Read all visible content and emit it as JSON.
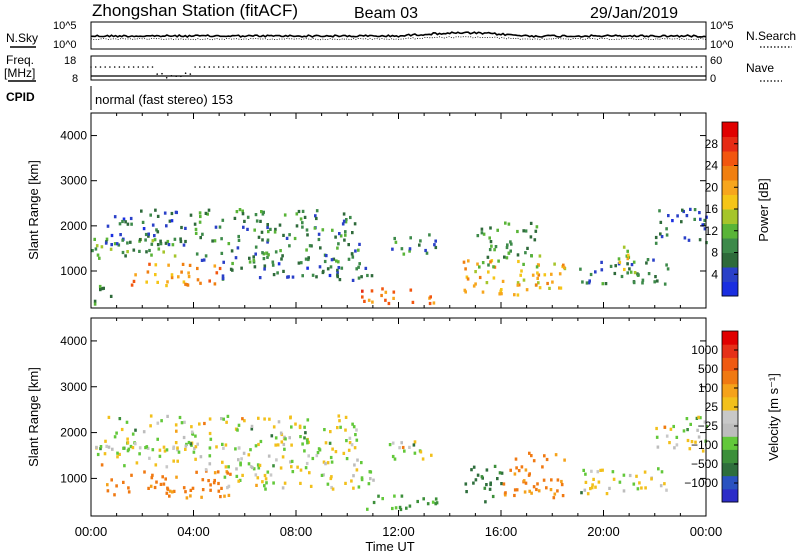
{
  "header": {
    "station": "Zhongshan Station (fitACF)",
    "beam": "Beam 03",
    "date": "29/Jan/2019"
  },
  "labels": {
    "nsky": "N.Sky",
    "nsearch": "N.Search",
    "freq": "Freq.",
    "freq_unit": "[MHz]",
    "nave": "Nave",
    "cpid": "CPID",
    "cpid_text": "normal (fast stereo) 153",
    "x_axis": "Time UT"
  },
  "noise_panel": {
    "left_ticks": [
      "10^5",
      "10^0"
    ],
    "right_ticks": [
      "10^5",
      "10^0"
    ]
  },
  "freq_panel": {
    "left_ticks": [
      "18",
      "8"
    ],
    "right_ticks": [
      "60",
      "0"
    ]
  },
  "colors": {
    "power": [
      "#1a2ee0",
      "#2a40c8",
      "#2e6a3a",
      "#3d8a4a",
      "#59b437",
      "#a5c52b",
      "#f5c517",
      "#f7a61d",
      "#f07f10",
      "#f2560f",
      "#e62b14",
      "#e00000"
    ],
    "velocity": [
      "#2c2cc8",
      "#2a52c0",
      "#2e6e3c",
      "#3c8f3a",
      "#62c83a",
      "#bdbdbd",
      "#c8c8c8",
      "#f2c01c",
      "#f5a21a",
      "#f07912",
      "#ef5a12",
      "#e63018",
      "#e00000"
    ]
  },
  "chart_data": [
    {
      "type": "heatmap",
      "title": "",
      "ylabel": "Slant Range [km]",
      "xlabel": "",
      "xticks": [
        "00:00",
        "04:00",
        "08:00",
        "12:00",
        "16:00",
        "20:00",
        "00:00"
      ],
      "yticks": [
        "1000",
        "2000",
        "3000",
        "4000"
      ],
      "ylim": [
        180,
        4500
      ],
      "xlim_hours": [
        0,
        24
      ],
      "colorbar": {
        "label": "Power [dB]",
        "ticks": [
          "4",
          "8",
          "12",
          "16",
          "20",
          "24",
          "28"
        ],
        "range": [
          0,
          30
        ]
      },
      "regions": [
        {
          "t0": 0.0,
          "t1": 3.5,
          "r0": 1250,
          "r1": 1750,
          "value": 10
        },
        {
          "t0": 0.5,
          "t1": 4.0,
          "r0": 1600,
          "r1": 2400,
          "value": 6
        },
        {
          "t0": 1.5,
          "t1": 5.0,
          "r0": 700,
          "r1": 1200,
          "value": 20
        },
        {
          "t0": 4.0,
          "t1": 10.5,
          "r0": 1200,
          "r1": 2400,
          "value": 8
        },
        {
          "t0": 5.0,
          "t1": 11.0,
          "r0": 800,
          "r1": 1200,
          "value": 6
        },
        {
          "t0": 0.0,
          "t1": 1.0,
          "r0": 300,
          "r1": 700,
          "value": 8
        },
        {
          "t0": 10.5,
          "t1": 13.5,
          "r0": 300,
          "r1": 650,
          "value": 22
        },
        {
          "t0": 11.5,
          "t1": 13.5,
          "r0": 1400,
          "r1": 1850,
          "value": 7
        },
        {
          "t0": 14.5,
          "t1": 18.5,
          "r0": 500,
          "r1": 1300,
          "value": 18
        },
        {
          "t0": 15.0,
          "t1": 17.5,
          "r0": 1100,
          "r1": 2100,
          "value": 9
        },
        {
          "t0": 19.0,
          "t1": 22.5,
          "r0": 700,
          "r1": 1300,
          "value": 7
        },
        {
          "t0": 20.5,
          "t1": 21.5,
          "r0": 1000,
          "r1": 1600,
          "value": 14
        },
        {
          "t0": 22.0,
          "t1": 24.0,
          "r0": 1600,
          "r1": 2400,
          "value": 6
        }
      ]
    },
    {
      "type": "heatmap",
      "title": "",
      "ylabel": "Slant Range [km]",
      "xlabel": "Time UT",
      "xticks": [
        "00:00",
        "04:00",
        "08:00",
        "12:00",
        "16:00",
        "20:00",
        "00:00"
      ],
      "yticks": [
        "1000",
        "2000",
        "3000",
        "4000"
      ],
      "ylim": [
        180,
        4500
      ],
      "xlim_hours": [
        0,
        24
      ],
      "colorbar": {
        "label": "Velocity [m s⁻¹]",
        "ticks": [
          "1000",
          "500",
          "100",
          "25",
          "−25",
          "−100",
          "−500",
          "−1000"
        ],
        "range": [
          -1000,
          1000
        ]
      },
      "regions": [
        {
          "t0": 0.0,
          "t1": 3.5,
          "r0": 1250,
          "r1": 1750,
          "value": 0
        },
        {
          "t0": 0.5,
          "t1": 4.0,
          "r0": 1600,
          "r1": 2400,
          "value": 0
        },
        {
          "t0": 0.5,
          "t1": 5.5,
          "r0": 600,
          "r1": 1200,
          "value": -300
        },
        {
          "t0": 4.0,
          "t1": 10.5,
          "r0": 1200,
          "r1": 2400,
          "value": 0
        },
        {
          "t0": 5.0,
          "t1": 11.0,
          "r0": 800,
          "r1": 1200,
          "value": 0
        },
        {
          "t0": 10.5,
          "t1": 13.5,
          "r0": 300,
          "r1": 650,
          "value": 150
        },
        {
          "t0": 11.5,
          "t1": 13.5,
          "r0": 1400,
          "r1": 1850,
          "value": 0
        },
        {
          "t0": 14.5,
          "t1": 16.0,
          "r0": 500,
          "r1": 1300,
          "value": 300
        },
        {
          "t0": 16.0,
          "t1": 18.5,
          "r0": 600,
          "r1": 1600,
          "value": -300
        },
        {
          "t0": 19.0,
          "t1": 22.5,
          "r0": 700,
          "r1": 1300,
          "value": 0
        },
        {
          "t0": 22.0,
          "t1": 24.0,
          "r0": 1600,
          "r1": 2400,
          "value": 0
        }
      ]
    }
  ]
}
